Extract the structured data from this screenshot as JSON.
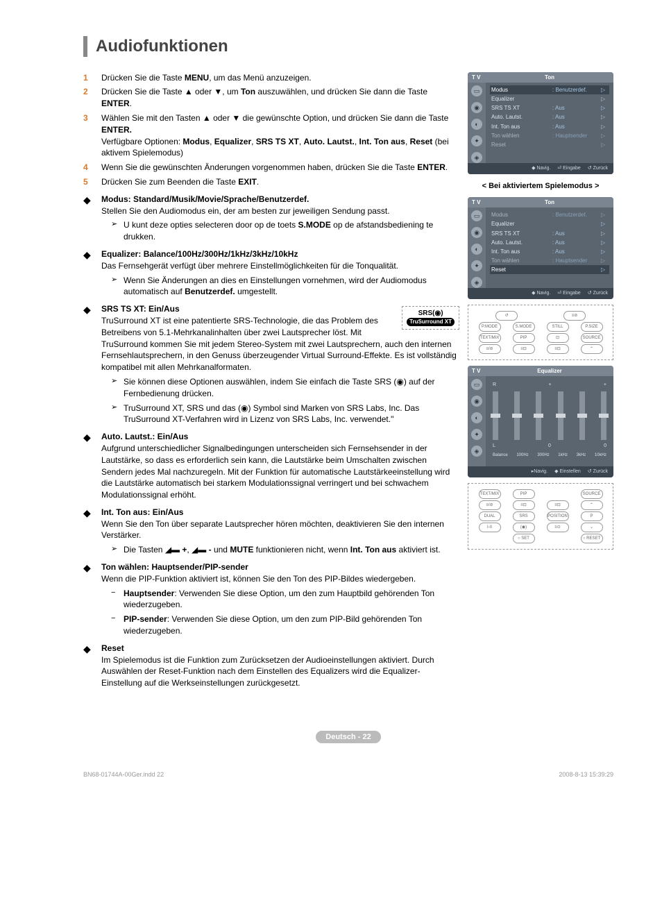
{
  "title": "Audiofunktionen",
  "steps": [
    {
      "num": "1",
      "html": "Drücken Sie die Taste <b>MENU</b>, um das Menü anzuzeigen."
    },
    {
      "num": "2",
      "html": "Drücken Sie die Taste ▲ oder ▼, um <b>Ton</b> auszuwählen, und drücken Sie dann die Taste <b>ENTER</b>."
    },
    {
      "num": "3",
      "html": "Wählen Sie mit den Tasten ▲ oder ▼ die gewünschte Option, und drücken Sie dann die Taste <b>ENTER.</b><br>Verfügbare Optionen: <b>Modus</b>, <b>Equalizer</b>, <b>SRS TS XT</b>, <b>Auto. Lautst.</b>, <b>Int. Ton aus</b>, <b>Reset</b> (bei aktivem Spielemodus)"
    },
    {
      "num": "4",
      "html": "Wenn Sie die gewünschten Änderungen vorgenommen haben, drücken Sie die Taste <b>ENTER</b>."
    },
    {
      "num": "5",
      "html": "Drücken Sie zum Beenden die Taste <b>EXIT</b>."
    }
  ],
  "bullets": [
    {
      "head": "Modus",
      "tail": ": Standard/Musik/Movie/Sprache/Benutzerdef.",
      "body": "Stellen Sie den Audiomodus ein, der am besten zur jeweiligen Sendung passt.",
      "subs": [
        {
          "html": "U kunt deze opties selecteren door op de toets <b>S.MODE</b> op de afstandsbediening te drukken."
        }
      ]
    },
    {
      "head": "Equalizer",
      "tail": ": Balance/100Hz/300Hz/1kHz/3kHz/10kHz",
      "body": "Das Fernsehgerät verfügt über mehrere Einstellmöglichkeiten für die Tonqualität.",
      "subs": [
        {
          "html": "Wenn Sie Änderungen an dies en Einstellungen vornehmen, wird der Audiomodus automatisch auf <b>Benutzerdef.</b> umgestellt."
        }
      ]
    },
    {
      "head": "SRS TS XT",
      "tail": ": Ein/Aus",
      "body": "TruSurround XT ist eine patentierte SRS-Technologie, die das Problem des Betreibens von 5.1-Mehrkanalinhalten über zwei Lautsprecher löst. Mit TruSurround kommen Sie mit jedem Stereo-System mit zwei Lautsprechern, auch den internen Fernsehlautsprechern, in den Genuss überzeugender Virtual Surround-Effekte. Es ist vollständig kompatibel mit allen Mehrkanalformaten.",
      "subs": [
        {
          "html": "Sie können diese Optionen auswählen, indem Sie einfach die Taste SRS (◉) auf der Fernbedienung drücken."
        },
        {
          "html": "TruSurround XT, SRS und das (◉) Symbol sind Marken von SRS Labs, Inc. Das TruSurround XT-Verfahren wird in Lizenz von SRS Labs, Inc. verwendet.\""
        }
      ],
      "showSrs": true
    },
    {
      "head": "Auto. Lautst.",
      "tail": ": Ein/Aus",
      "body": "Aufgrund unterschiedlicher Signalbedingungen unterscheiden sich Fernsehsender in der Lautstärke, so dass es erforderlich sein kann, die Lautstärke beim Umschalten zwischen Sendern jedes Mal nachzuregeln. Mit der Funktion für automatische Lautstärkeeinstellung wird die Lautstärke automatisch bei starkem Modulationssignal verringert und bei schwachem Modulationssignal erhöht.",
      "subs": []
    },
    {
      "head": "Int. Ton aus",
      "tail": ": Ein/Aus",
      "body": "Wenn Sie den Ton über separate Lautsprecher hören möchten, deaktivieren Sie den internen Verstärker.",
      "subs": [
        {
          "html": "Die Tasten ◢▬ <b>+</b>, ◢▬ <b>-</b> und <b>MUTE</b> funktionieren nicht, wenn <b>Int. Ton aus</b> aktiviert ist."
        }
      ]
    },
    {
      "head": "Ton wählen",
      "tail": ": Hauptsender/PIP-sender",
      "body": "Wenn die PIP-Funktion aktiviert ist, können Sie den Ton des PIP-Bildes wiedergeben.",
      "subs": [
        {
          "dash": true,
          "html": "<b>Hauptsender</b>: Verwenden Sie diese Option, um den zum Hauptbild gehörenden Ton wiederzugeben."
        },
        {
          "dash": true,
          "html": "<b>PIP-sender</b>: Verwenden Sie diese Option, um den zum PIP-Bild gehörenden Ton wiederzugeben."
        }
      ]
    },
    {
      "head": "Reset",
      "tail": "",
      "body": "Im Spielemodus ist die Funktion zum Zurücksetzen der Audioeinstellungen aktiviert. Durch Auswählen der Reset-Funktion nach dem Einstellen des Equalizers wird die Equalizer-Einstellung auf die Werkseinstellungen zurückgesetzt.",
      "subs": []
    }
  ],
  "osd1": {
    "tv": "T V",
    "title": "Ton",
    "rows": [
      {
        "lbl": "Modus",
        "val": ": Benutzerdef.",
        "sel": true
      },
      {
        "lbl": "Equalizer",
        "val": ""
      },
      {
        "lbl": "SRS TS XT",
        "val": ": Aus"
      },
      {
        "lbl": "Auto. Lautst.",
        "val": ": Aus"
      },
      {
        "lbl": "Int. Ton aus",
        "val": ": Aus"
      },
      {
        "lbl": "Ton wählen",
        "val": ": Hauptsender",
        "dim": true
      },
      {
        "lbl": "Reset",
        "val": "",
        "dim": true
      }
    ],
    "foot": [
      "◆ Navig.",
      "⏎ Eingabe",
      "↺ Zurück"
    ]
  },
  "caption1": "< Bei aktiviertem Spielemodus >",
  "osd2": {
    "tv": "T V",
    "title": "Ton",
    "rows": [
      {
        "lbl": "Modus",
        "val": ": Benutzerdef.",
        "dim": true
      },
      {
        "lbl": "Equalizer",
        "val": ""
      },
      {
        "lbl": "SRS TS XT",
        "val": ": Aus"
      },
      {
        "lbl": "Auto. Lautst.",
        "val": ": Aus"
      },
      {
        "lbl": "Int. Ton aus",
        "val": ": Aus"
      },
      {
        "lbl": "Ton wählen",
        "val": ": Hauptsender",
        "dim": true
      },
      {
        "lbl": "Reset",
        "val": "",
        "sel": true
      }
    ],
    "foot": [
      "◆ Navig.",
      "⏎ Eingabe",
      "↺ Zurück"
    ]
  },
  "remote1": {
    "rows": [
      [
        "↺",
        "≡⊘"
      ],
      [
        "P.MODE",
        "S.MODE",
        "STILL",
        "P.SIZE"
      ],
      [
        "TEXT/MIX",
        "PIP",
        "⊡",
        "SOURCE"
      ],
      [
        "≡/⊘",
        "≡⊡",
        "≡⊡",
        "⌃"
      ]
    ]
  },
  "osd3": {
    "tv": "T V",
    "title": "Equalizer",
    "rl": [
      "R",
      "+",
      "+"
    ],
    "ll": [
      "L",
      "0",
      "0"
    ],
    "bands": [
      "Balance",
      "100Hz",
      "300Hz",
      "1kHz",
      "3kHz",
      "10kHz"
    ],
    "foot": [
      "▸Navig.",
      "◆ Einstellen",
      "↺ Zurück"
    ]
  },
  "remote2": {
    "rows": [
      [
        "TEXT/MIX",
        "PIP",
        "",
        "SOURCE"
      ],
      [
        "≡/⊘",
        "≡⊡",
        "≡⊡",
        "⌃"
      ],
      [
        "DUAL",
        "SRS",
        "POSITION",
        "P"
      ],
      [
        "I-II",
        "(◉)",
        "≡⊙",
        "⌄"
      ],
      [
        "",
        "○ SET",
        "",
        "○ RESET"
      ]
    ]
  },
  "srsLogo": {
    "top": "SRS(◉)",
    "bottom": "TruSurround XT"
  },
  "footer": "Deutsch - 22",
  "print": {
    "left": "BN68-01744A-00Ger.indd   22",
    "right": "2008-8-13   15:39:29"
  }
}
